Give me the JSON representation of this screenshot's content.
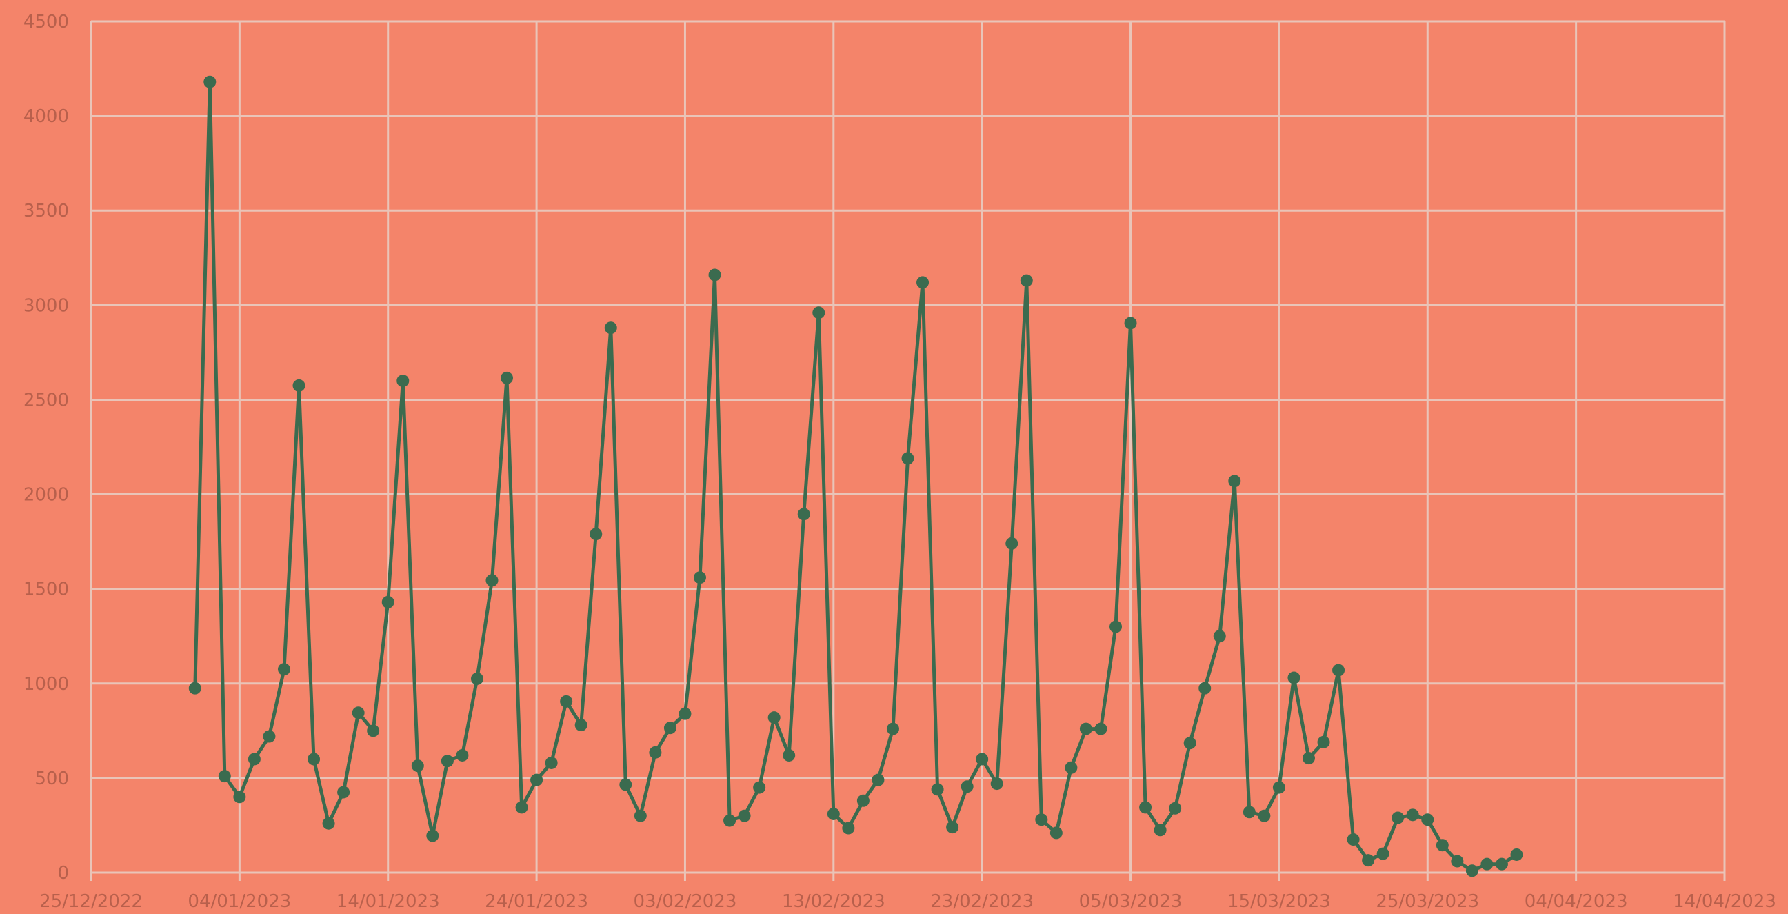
{
  "chart_data": {
    "type": "line",
    "x": [
      "01/01/2023",
      "02/01/2023",
      "03/01/2023",
      "04/01/2023",
      "05/01/2023",
      "06/01/2023",
      "07/01/2023",
      "08/01/2023",
      "09/01/2023",
      "10/01/2023",
      "11/01/2023",
      "12/01/2023",
      "13/01/2023",
      "14/01/2023",
      "15/01/2023",
      "16/01/2023",
      "17/01/2023",
      "18/01/2023",
      "19/01/2023",
      "20/01/2023",
      "21/01/2023",
      "22/01/2023",
      "23/01/2023",
      "24/01/2023",
      "25/01/2023",
      "26/01/2023",
      "27/01/2023",
      "28/01/2023",
      "29/01/2023",
      "30/01/2023",
      "31/01/2023",
      "01/02/2023",
      "02/02/2023",
      "03/02/2023",
      "04/02/2023",
      "05/02/2023",
      "06/02/2023",
      "07/02/2023",
      "08/02/2023",
      "09/02/2023",
      "10/02/2023",
      "11/02/2023",
      "12/02/2023",
      "13/02/2023",
      "14/02/2023",
      "15/02/2023",
      "16/02/2023",
      "17/02/2023",
      "18/02/2023",
      "19/02/2023",
      "20/02/2023",
      "21/02/2023",
      "22/02/2023",
      "23/02/2023",
      "24/02/2023",
      "25/02/2023",
      "26/02/2023",
      "27/02/2023",
      "28/02/2023",
      "01/03/2023",
      "02/03/2023",
      "03/03/2023",
      "04/03/2023",
      "05/03/2023",
      "06/03/2023",
      "07/03/2023",
      "08/03/2023",
      "09/03/2023",
      "10/03/2023",
      "11/03/2023",
      "12/03/2023",
      "13/03/2023",
      "14/03/2023",
      "15/03/2023",
      "16/03/2023",
      "17/03/2023",
      "18/03/2023",
      "19/03/2023",
      "20/03/2023",
      "21/03/2023",
      "22/03/2023",
      "23/03/2023",
      "24/03/2023",
      "25/03/2023",
      "26/03/2023",
      "27/03/2023",
      "28/03/2023",
      "29/03/2023",
      "30/03/2023",
      "31/03/2023"
    ],
    "values": [
      975,
      4180,
      510,
      400,
      600,
      720,
      1075,
      2575,
      600,
      260,
      425,
      845,
      750,
      1430,
      2600,
      565,
      195,
      590,
      620,
      1025,
      1545,
      2615,
      345,
      490,
      580,
      905,
      780,
      1790,
      2880,
      465,
      300,
      635,
      765,
      840,
      1560,
      3160,
      275,
      300,
      450,
      820,
      620,
      1895,
      2960,
      310,
      235,
      380,
      490,
      760,
      2190,
      3120,
      440,
      240,
      455,
      600,
      470,
      1740,
      3130,
      280,
      210,
      555,
      760,
      760,
      1300,
      2905,
      345,
      225,
      340,
      685,
      975,
      1250,
      2070,
      320,
      300,
      450,
      1030,
      605,
      690,
      1070,
      175,
      65,
      100,
      290,
      305,
      280,
      145,
      60,
      10,
      45,
      45,
      95
    ],
    "color": "#3b6b4f",
    "xlim": [
      "25/12/2022",
      "14/04/2023"
    ],
    "xticks": [
      "25/12/2022",
      "04/01/2023",
      "14/01/2023",
      "24/01/2023",
      "03/02/2023",
      "13/02/2023",
      "23/02/2023",
      "05/03/2023",
      "15/03/2023",
      "25/03/2023",
      "04/04/2023",
      "14/04/2023"
    ],
    "ylim": [
      0,
      4500
    ],
    "yticks": [
      0,
      500,
      1000,
      1500,
      2000,
      2500,
      3000,
      3500,
      4000,
      4500
    ],
    "grid": true
  }
}
